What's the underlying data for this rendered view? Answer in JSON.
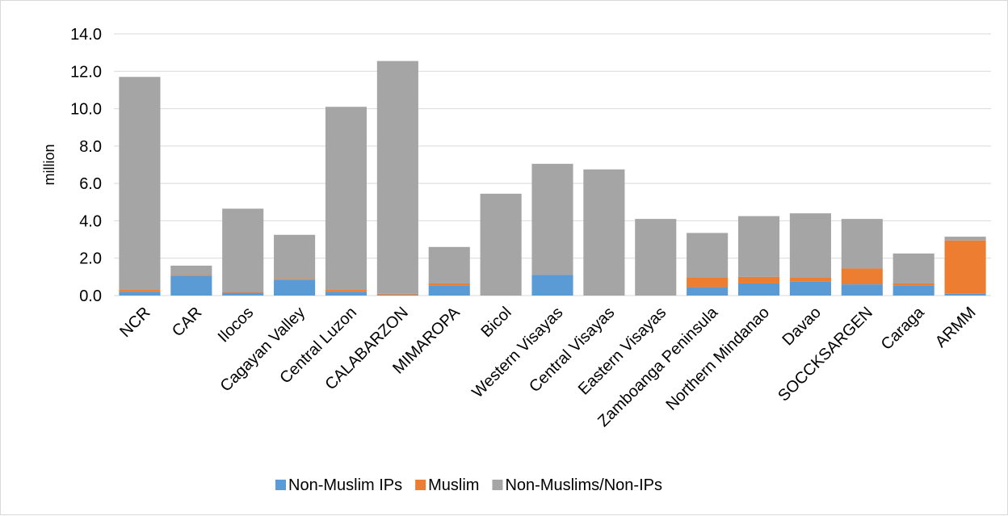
{
  "chart_data": {
    "type": "bar",
    "stacked": true,
    "title": "",
    "xlabel": "",
    "ylabel": "million",
    "ylim": [
      0,
      14
    ],
    "yticks": [
      "0.0",
      "2.0",
      "4.0",
      "6.0",
      "8.0",
      "10.0",
      "12.0",
      "14.0"
    ],
    "grid": true,
    "legend_position": "bottom",
    "categories": [
      "NCR",
      "CAR",
      "Ilocos",
      "Cagayan Valley",
      "Central Luzon",
      "CALABARZON",
      "MIMAROPA",
      "Bicol",
      "Western Visayas",
      "Central Visayas",
      "Eastern Visayas",
      "Zamboanga Peninsula",
      "Northern Mindanao",
      "Davao",
      "SOCCKSARGEN",
      "Caraga",
      "ARMM"
    ],
    "series": [
      {
        "name": "Non-Muslim IPs",
        "color": "#5b9bd5",
        "values": [
          0.2,
          1.05,
          0.15,
          0.85,
          0.2,
          0.05,
          0.55,
          0.0,
          1.1,
          0.0,
          0.0,
          0.45,
          0.65,
          0.75,
          0.6,
          0.55,
          0.1
        ]
      },
      {
        "name": "Muslim",
        "color": "#ed7d31",
        "values": [
          0.1,
          0.05,
          0.05,
          0.05,
          0.1,
          0.05,
          0.1,
          0.0,
          0.0,
          0.0,
          0.0,
          0.5,
          0.35,
          0.2,
          0.85,
          0.1,
          2.85
        ]
      },
      {
        "name": "Non-Muslims/Non-IPs",
        "color": "#a5a5a5",
        "values": [
          11.4,
          0.5,
          4.45,
          2.35,
          9.8,
          12.45,
          1.95,
          5.45,
          5.95,
          6.75,
          4.1,
          2.4,
          3.25,
          3.45,
          2.65,
          1.6,
          0.2
        ]
      }
    ]
  }
}
